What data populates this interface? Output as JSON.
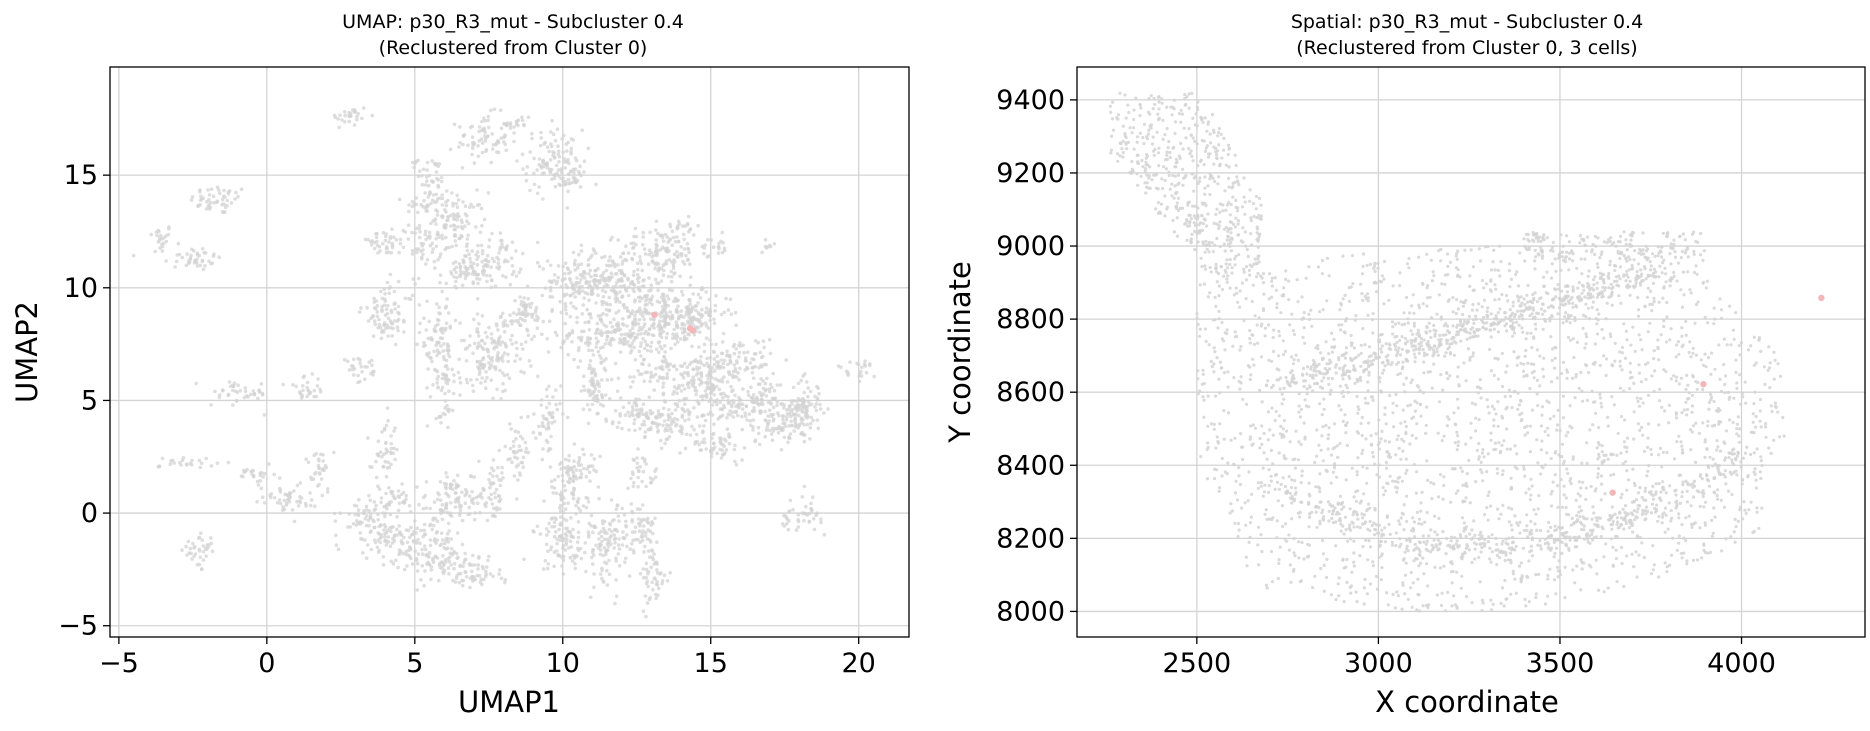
{
  "chart_data": [
    {
      "type": "scatter",
      "title": "UMAP: p30_R3_mut - Subcluster 0.4",
      "subtitle": "(Reclustered from Cluster 0)",
      "xlabel": "UMAP1",
      "ylabel": "UMAP2",
      "xlim": [
        -5.3,
        21.7
      ],
      "ylim": [
        -5.5,
        19.8
      ],
      "xticks": [
        -5,
        0,
        5,
        10,
        15,
        20
      ],
      "xtick_labels": [
        "−5",
        "0",
        "5",
        "10",
        "15",
        "20"
      ],
      "yticks": [
        -5,
        0,
        5,
        10,
        15
      ],
      "ytick_labels": [
        "−5",
        "0",
        "5",
        "10",
        "15"
      ],
      "grid": true,
      "colors": {
        "background_points": "#d3d3d3",
        "highlight_points": "#f4b6b6"
      },
      "background_regions": [
        [
          -3.6,
          12.2,
          0.4,
          0.6
        ],
        [
          -1.6,
          13.9,
          0.9,
          0.6
        ],
        [
          -2.5,
          11.3,
          0.9,
          0.5
        ],
        [
          2.8,
          17.6,
          0.6,
          0.5
        ],
        [
          5.6,
          14.8,
          0.4,
          0.9
        ],
        [
          5.3,
          13.7,
          0.6,
          0.4
        ],
        [
          7.3,
          16.6,
          0.8,
          1.0
        ],
        [
          8.5,
          17.3,
          0.4,
          0.5
        ],
        [
          9.7,
          15.6,
          0.9,
          1.3
        ],
        [
          10.2,
          14.9,
          0.6,
          0.5
        ],
        [
          6.3,
          12.9,
          1.0,
          1.2
        ],
        [
          7.5,
          11.2,
          1.0,
          1.1
        ],
        [
          5.3,
          11.9,
          0.6,
          0.7
        ],
        [
          6.6,
          10.5,
          0.7,
          0.6
        ],
        [
          3.9,
          12.0,
          0.8,
          0.5
        ],
        [
          11.6,
          10.3,
          1.7,
          1.2
        ],
        [
          13.3,
          11.5,
          1.3,
          1.0
        ],
        [
          12.9,
          8.8,
          1.8,
          1.2
        ],
        [
          10.5,
          10.3,
          0.9,
          1.0
        ],
        [
          14.6,
          8.9,
          1.0,
          0.8
        ],
        [
          14.1,
          8.5,
          0.9,
          0.7
        ],
        [
          11.7,
          7.8,
          2.0,
          0.8
        ],
        [
          16.0,
          6.8,
          1.1,
          0.9
        ],
        [
          14.7,
          6.5,
          0.8,
          0.9
        ],
        [
          17.3,
          4.1,
          1.1,
          1.0
        ],
        [
          16.2,
          4.7,
          0.9,
          0.9
        ],
        [
          13.9,
          4.1,
          1.3,
          0.9
        ],
        [
          12.6,
          4.4,
          0.9,
          0.7
        ],
        [
          17.9,
          4.4,
          0.7,
          0.7
        ],
        [
          18.3,
          5.0,
          0.5,
          0.9
        ],
        [
          15.3,
          3.0,
          0.9,
          0.6
        ],
        [
          14.8,
          5.5,
          1.1,
          0.8
        ],
        [
          13.2,
          6.4,
          0.8,
          0.9
        ],
        [
          11.1,
          5.5,
          0.6,
          1.5
        ],
        [
          9.5,
          4.1,
          0.4,
          1.5
        ],
        [
          7.6,
          7.1,
          1.1,
          1.5
        ],
        [
          8.7,
          8.8,
          0.7,
          0.9
        ],
        [
          4.1,
          8.9,
          0.8,
          1.2
        ],
        [
          5.8,
          7.5,
          0.6,
          1.6
        ],
        [
          6.1,
          5.9,
          0.5,
          0.6
        ],
        [
          -0.9,
          5.3,
          0.9,
          0.5
        ],
        [
          1.3,
          5.5,
          0.6,
          0.5
        ],
        [
          3.2,
          6.3,
          0.6,
          0.5
        ],
        [
          4.0,
          2.7,
          0.4,
          1.2
        ],
        [
          4.3,
          0.7,
          0.5,
          0.6
        ],
        [
          7.7,
          0.9,
          0.5,
          1.1
        ],
        [
          8.4,
          2.7,
          0.4,
          1.1
        ],
        [
          6.2,
          0.4,
          1.1,
          0.9
        ],
        [
          4.7,
          -1.2,
          1.5,
          0.9
        ],
        [
          3.4,
          -0.2,
          0.8,
          0.9
        ],
        [
          0.6,
          0.7,
          0.9,
          0.6
        ],
        [
          -0.4,
          1.8,
          0.6,
          0.4
        ],
        [
          -2.6,
          2.2,
          0.9,
          0.3
        ],
        [
          1.8,
          1.9,
          0.4,
          0.9
        ],
        [
          6.1,
          -2.2,
          1.3,
          0.8
        ],
        [
          7.1,
          -2.9,
          0.9,
          0.4
        ],
        [
          10.2,
          0.9,
          0.6,
          1.3
        ],
        [
          10.0,
          -1.3,
          0.9,
          1.1
        ],
        [
          10.6,
          2.0,
          0.6,
          0.7
        ],
        [
          11.5,
          -1.5,
          0.8,
          1.6
        ],
        [
          12.7,
          1.8,
          0.5,
          0.7
        ],
        [
          12.6,
          -0.6,
          0.6,
          1.0
        ],
        [
          13.1,
          -3.0,
          0.4,
          1.3
        ],
        [
          -2.3,
          -1.7,
          0.5,
          0.8
        ],
        [
          6.0,
          4.3,
          0.4,
          0.4
        ],
        [
          6.3,
          1.3,
          0.4,
          0.4
        ],
        [
          19.9,
          6.4,
          0.6,
          0.4
        ],
        [
          16.9,
          5.6,
          0.4,
          0.5
        ],
        [
          18.2,
          0.0,
          0.5,
          0.7
        ],
        [
          17.6,
          -0.3,
          0.3,
          0.4
        ],
        [
          14.0,
          12.6,
          0.6,
          0.4
        ],
        [
          15.2,
          11.9,
          0.5,
          0.4
        ],
        [
          16.9,
          11.9,
          0.3,
          0.3
        ],
        [
          5.2,
          15.6,
          0.3,
          0.3
        ]
      ],
      "highlight_points": [
        {
          "x": 13.1,
          "y": 8.8
        },
        {
          "x": 14.3,
          "y": 8.2
        },
        {
          "x": 14.4,
          "y": 8.1
        }
      ]
    },
    {
      "type": "scatter",
      "title": "Spatial: p30_R3_mut - Subcluster 0.4",
      "subtitle": "(Reclustered from Cluster 0, 3 cells)",
      "xlabel": "X coordinate",
      "ylabel": "Y coordinate",
      "xlim": [
        2170,
        4340
      ],
      "ylim": [
        7930,
        9490
      ],
      "xticks": [
        2500,
        3000,
        3500,
        4000
      ],
      "xtick_labels": [
        "2500",
        "3000",
        "3500",
        "4000"
      ],
      "yticks": [
        8000,
        8200,
        8400,
        8600,
        8800,
        9000,
        9200,
        9400
      ],
      "ytick_labels": [
        "8000",
        "8200",
        "8400",
        "8600",
        "8800",
        "9000",
        "9200",
        "9400"
      ],
      "grid": true,
      "colors": {
        "background_points": "#d3d3d3",
        "highlight_points": "#f4b6b6"
      },
      "highlight_points": [
        {
          "x": 4220,
          "y": 8858
        },
        {
          "x": 3895,
          "y": 8622
        },
        {
          "x": 3645,
          "y": 8325
        }
      ]
    }
  ]
}
